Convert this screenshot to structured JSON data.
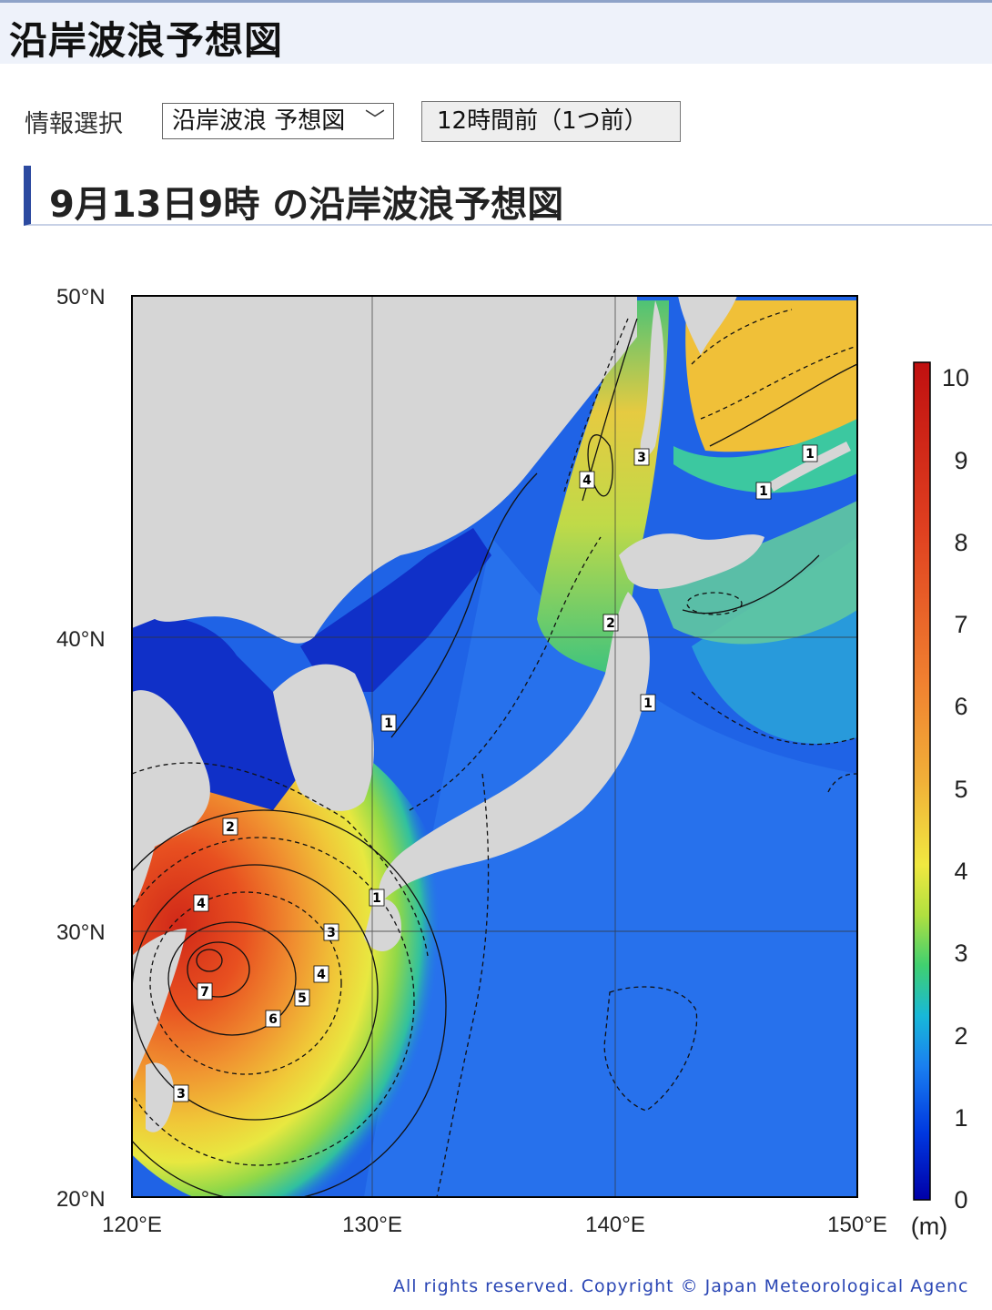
{
  "header": {
    "title": "沿岸波浪予想図"
  },
  "controls": {
    "info_label": "情報選択",
    "select_value": "沿岸波浪 予想図",
    "prev_button": "12時間前（1つ前）"
  },
  "section": {
    "title": "9月13日9時 の沿岸波浪予想図"
  },
  "map": {
    "lat_labels": [
      "50°N",
      "40°N",
      "30°N",
      "20°N"
    ],
    "lon_labels": [
      "120°E",
      "130°E",
      "140°E",
      "150°E"
    ],
    "contour_labels": [
      "1",
      "2",
      "3",
      "4",
      "5",
      "6",
      "7"
    ],
    "colorbar": {
      "ticks": [
        "10",
        "9",
        "8",
        "7",
        "6",
        "5",
        "4",
        "3",
        "2",
        "1",
        "0"
      ],
      "unit": "(m)",
      "colors": [
        "#0000a8",
        "#0040e0",
        "#1a90e8",
        "#18c8c0",
        "#40d070",
        "#a8e040",
        "#f0f040",
        "#f0c038",
        "#f09030",
        "#e85020",
        "#c81818"
      ]
    }
  },
  "footer": {
    "copyright": "All rights reserved. Copyright © Japan Meteorological Agenc"
  }
}
